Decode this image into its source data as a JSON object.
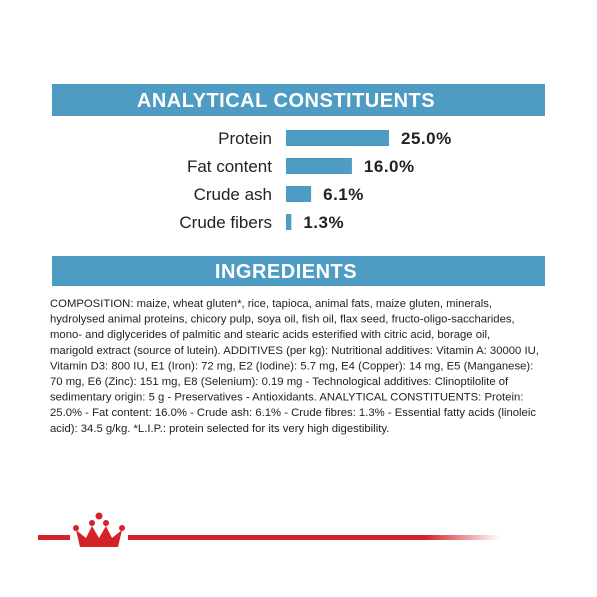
{
  "chart_data": {
    "type": "bar",
    "title": "ANALYTICAL CONSTITUENTS",
    "categories": [
      "Protein",
      "Fat content",
      "Crude ash",
      "Crude fibers"
    ],
    "values": [
      25.0,
      16.0,
      6.1,
      1.3
    ],
    "value_labels": [
      "25.0%",
      "16.0%",
      "6.1%",
      "1.3%"
    ],
    "color": "#4e9cc4"
  },
  "ingredients": {
    "title": "INGREDIENTS",
    "lines": [
      "COMPOSITION: maize, wheat gluten*, rice, tapioca, animal fats, maize gluten, minerals,",
      "hydrolysed animal proteins, chicory pulp, soya oil, fish oil, flax seed, fructo-oligo-saccharides,",
      "mono- and diglycerides of palmitic and stearic acids esterified with citric acid, borage oil,",
      "marigold extract (source of lutein). ADDITIVES (per kg): Nutritional additives: Vitamin A: 30000 IU,",
      "Vitamin D3: 800 IU, E1 (Iron): 72 mg, E2 (Iodine): 5.7 mg, E4 (Copper): 14 mg, E5 (Manganese):",
      "70 mg, E6 (Zinc): 151 mg, E8 (Selenium): 0.19 mg - Technological additives: Clinoptilolite of",
      "sedimentary origin: 5 g - Preservatives - Antioxidants. ANALYTICAL CONSTITUENTS: Protein:",
      "25.0% - Fat content: 16.0% - Crude ash: 6.1% - Crude fibres: 1.3% - Essential fatty acids (linoleic",
      "acid): 34.5 g/kg. *L.I.P.: protein selected for its very high digestibility."
    ]
  }
}
